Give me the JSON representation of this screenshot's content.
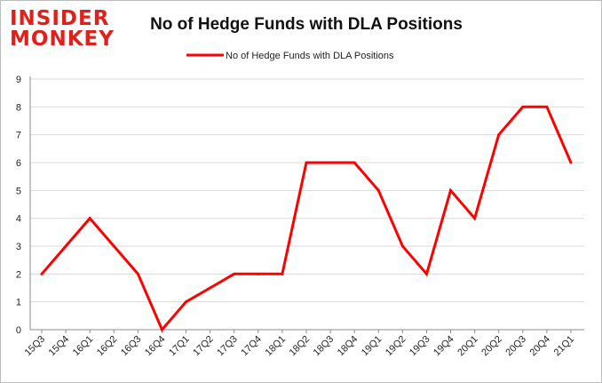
{
  "logo": {
    "line1": "INSIDER",
    "line2": "MONKEY",
    "color": "#e0201b"
  },
  "chart_data": {
    "type": "line",
    "title": "No of Hedge Funds with DLA Positions",
    "xlabel": "",
    "ylabel": "",
    "ylim": [
      0,
      9
    ],
    "yticks": [
      0,
      1,
      2,
      3,
      4,
      5,
      6,
      7,
      8,
      9
    ],
    "grid": true,
    "legend": "top",
    "categories": [
      "15Q3",
      "15Q4",
      "16Q1",
      "16Q2",
      "16Q3",
      "16Q4",
      "17Q1",
      "17Q2",
      "17Q3",
      "17Q4",
      "18Q1",
      "18Q2",
      "18Q3",
      "18Q4",
      "19Q1",
      "19Q2",
      "19Q3",
      "19Q4",
      "20Q1",
      "20Q2",
      "20Q3",
      "20Q4",
      "21Q1"
    ],
    "series": [
      {
        "name": "No of Hedge Funds with DLA Positions",
        "color": "#ff0000",
        "values": [
          2,
          3,
          4,
          3,
          2,
          0,
          1,
          1.5,
          2,
          2,
          2,
          6,
          6,
          6,
          5,
          3,
          2,
          5,
          4,
          7,
          8,
          8,
          6
        ]
      }
    ]
  }
}
